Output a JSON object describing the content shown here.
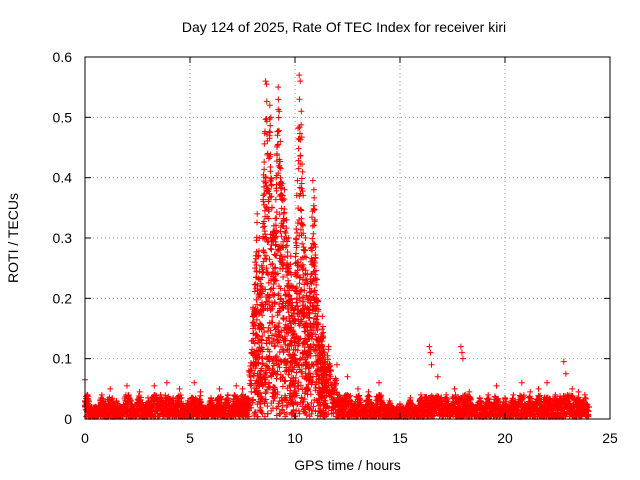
{
  "chart_data": {
    "type": "scatter",
    "title": "Day 124 of 2025, Rate Of TEC Index for receiver kiri",
    "xlabel": "GPS time / hours",
    "ylabel": "ROTI / TECUs",
    "xlim": [
      0,
      25
    ],
    "ylim": [
      0,
      0.6
    ],
    "xticks": [
      0,
      5,
      10,
      15,
      20,
      25
    ],
    "xtick_labels": [
      "0",
      "5",
      "10",
      "15",
      "20",
      "25"
    ],
    "yticks": [
      0,
      0.1,
      0.2,
      0.3,
      0.4,
      0.5,
      0.6
    ],
    "ytick_labels": [
      "0",
      "0.1",
      "0.2",
      "0.3",
      "0.4",
      "0.5",
      "0.6"
    ],
    "grid": true,
    "marker": "+",
    "series": [
      {
        "name": "ROTI",
        "color": "#ff0000",
        "points": [
          [
            0.0,
            0.065
          ],
          [
            0.0,
            0.03
          ],
          [
            0.0,
            0.02
          ],
          [
            0.05,
            0.015
          ],
          [
            0.1,
            0.012
          ],
          [
            0.5,
            0.02
          ],
          [
            0.8,
            0.04
          ],
          [
            1.0,
            0.025
          ],
          [
            1.2,
            0.05
          ],
          [
            1.5,
            0.03
          ],
          [
            2.0,
            0.055
          ],
          [
            2.2,
            0.03
          ],
          [
            2.6,
            0.045
          ],
          [
            3.0,
            0.035
          ],
          [
            3.3,
            0.055
          ],
          [
            3.6,
            0.04
          ],
          [
            3.9,
            0.06
          ],
          [
            4.2,
            0.035
          ],
          [
            4.5,
            0.05
          ],
          [
            4.9,
            0.03
          ],
          [
            5.2,
            0.06
          ],
          [
            5.5,
            0.045
          ],
          [
            6.0,
            0.035
          ],
          [
            6.4,
            0.05
          ],
          [
            6.8,
            0.04
          ],
          [
            7.2,
            0.055
          ],
          [
            7.5,
            0.05
          ],
          [
            7.8,
            0.08
          ],
          [
            8.0,
            0.15
          ],
          [
            8.1,
            0.26
          ],
          [
            8.2,
            0.34
          ],
          [
            8.3,
            0.3
          ],
          [
            8.4,
            0.22
          ],
          [
            8.5,
            0.28
          ],
          [
            8.6,
            0.56
          ],
          [
            8.65,
            0.555
          ],
          [
            8.7,
            0.44
          ],
          [
            8.75,
            0.38
          ],
          [
            8.8,
            0.52
          ],
          [
            8.85,
            0.5
          ],
          [
            8.9,
            0.35
          ],
          [
            9.0,
            0.32
          ],
          [
            9.1,
            0.4
          ],
          [
            9.2,
            0.55
          ],
          [
            9.25,
            0.51
          ],
          [
            9.3,
            0.46
          ],
          [
            9.4,
            0.39
          ],
          [
            9.5,
            0.38
          ],
          [
            9.6,
            0.33
          ],
          [
            9.7,
            0.3
          ],
          [
            9.8,
            0.27
          ],
          [
            9.9,
            0.22
          ],
          [
            10.0,
            0.24
          ],
          [
            10.1,
            0.2
          ],
          [
            10.2,
            0.57
          ],
          [
            10.25,
            0.56
          ],
          [
            10.3,
            0.51
          ],
          [
            10.4,
            0.25
          ],
          [
            10.5,
            0.3
          ],
          [
            10.6,
            0.24
          ],
          [
            10.7,
            0.21
          ],
          [
            10.85,
            0.395
          ],
          [
            10.9,
            0.38
          ],
          [
            10.95,
            0.33
          ],
          [
            11.0,
            0.2
          ],
          [
            11.3,
            0.17
          ],
          [
            11.6,
            0.12
          ],
          [
            12.0,
            0.09
          ],
          [
            12.5,
            0.07
          ],
          [
            13.0,
            0.05
          ],
          [
            13.5,
            0.045
          ],
          [
            14.0,
            0.06
          ],
          [
            14.5,
            0.03
          ],
          [
            15.0,
            0.025
          ],
          [
            15.5,
            0.035
          ],
          [
            16.0,
            0.04
          ],
          [
            16.4,
            0.12
          ],
          [
            16.45,
            0.11
          ],
          [
            16.5,
            0.09
          ],
          [
            16.8,
            0.07
          ],
          [
            17.2,
            0.04
          ],
          [
            17.6,
            0.05
          ],
          [
            17.9,
            0.12
          ],
          [
            17.95,
            0.11
          ],
          [
            18.0,
            0.1
          ],
          [
            18.3,
            0.045
          ],
          [
            18.8,
            0.035
          ],
          [
            19.2,
            0.04
          ],
          [
            19.6,
            0.055
          ],
          [
            20.0,
            0.035
          ],
          [
            20.4,
            0.04
          ],
          [
            20.8,
            0.06
          ],
          [
            21.2,
            0.045
          ],
          [
            21.6,
            0.05
          ],
          [
            22.0,
            0.06
          ],
          [
            22.4,
            0.04
          ],
          [
            22.8,
            0.095
          ],
          [
            22.9,
            0.075
          ],
          [
            23.2,
            0.05
          ],
          [
            23.5,
            0.045
          ],
          [
            23.8,
            0.04
          ],
          [
            24.0,
            0.02
          ]
        ]
      }
    ]
  }
}
